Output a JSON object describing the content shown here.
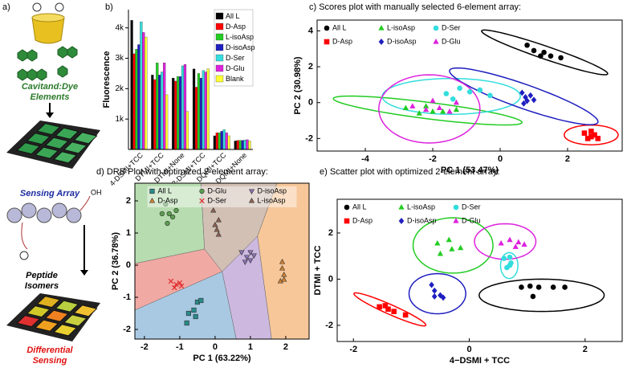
{
  "illustration": {
    "label": "a)",
    "elements": [
      "Cavitand:Dye",
      "Elements"
    ],
    "array": "Sensing Array",
    "hydroxyl": "OH",
    "peptides": [
      "Peptide",
      "Isomers"
    ],
    "sensing": [
      "Differential",
      "Sensing"
    ]
  },
  "chart_data": [
    {
      "type": "bar",
      "title": "b)",
      "ylabel": "Fluorescence",
      "categories": [
        "4-DSMI+TCC",
        "DTMI+TCC",
        "DTMI+None",
        "2-DSMI+TCC",
        "DQMI+TCC",
        "DQMI+None"
      ],
      "series": [
        {
          "name": "All L",
          "color": "#000000",
          "values": [
            4250,
            2450,
            2350,
            2650,
            450,
            280
          ]
        },
        {
          "name": "D-Asp",
          "color": "#ff0000",
          "values": [
            3150,
            2300,
            2250,
            2050,
            550,
            300
          ]
        },
        {
          "name": "L-isoAsp",
          "color": "#22cc22",
          "values": [
            3300,
            2850,
            2400,
            2500,
            550,
            300
          ]
        },
        {
          "name": "D-isoAsp",
          "color": "#1f1fbf",
          "values": [
            3450,
            2450,
            2400,
            2350,
            600,
            300
          ]
        },
        {
          "name": "D-Ser",
          "color": "#33dddd",
          "values": [
            4200,
            2550,
            2750,
            2600,
            650,
            310
          ]
        },
        {
          "name": "D-Glu",
          "color": "#dd22dd",
          "values": [
            3850,
            2850,
            2800,
            2550,
            550,
            320
          ]
        },
        {
          "name": "Blank",
          "color": "#ffff33",
          "values": [
            3700,
            1800,
            1250,
            2650,
            450,
            280
          ]
        }
      ],
      "ylim": [
        0,
        4600
      ],
      "yticks": [
        {
          "value": 1000,
          "label": "1k"
        },
        {
          "value": 2000,
          "label": "2k"
        },
        {
          "value": 3000,
          "label": "3k"
        },
        {
          "value": 4000,
          "label": "4k"
        }
      ],
      "legend": "upper right"
    },
    {
      "type": "scatter",
      "title": "c) Scores plot with manually selected 6-element array:",
      "xlabel": "PC 1 (53.47%)",
      "ylabel": "PC 2 (30.98%)",
      "xlim": [
        -5.43,
        3.62
      ],
      "ylim": [
        -2.7,
        4.6
      ],
      "xticks": [
        -4,
        -2,
        0,
        2
      ],
      "yticks": [
        -2,
        0,
        2,
        4
      ],
      "legend": "upper left",
      "series": [
        {
          "name": "All L",
          "color": "#000000",
          "marker": "circle",
          "x": [
            0.8,
            1.0,
            1.3,
            1.5,
            1.8,
            1.2
          ],
          "y": [
            3.2,
            2.9,
            2.8,
            2.6,
            2.5,
            2.6
          ],
          "ellipse": {
            "center": [
              1.32,
              2.8
            ],
            "u": [
              1.87,
              -1.2
            ],
            "v": [
              0.06,
              0.34
            ]
          }
        },
        {
          "name": "L-isoAsp",
          "color": "#22cc22",
          "marker": "triangle",
          "x": [
            -2.8,
            -2.4,
            -2.0,
            -1.7,
            -1.3,
            -2.2
          ],
          "y": [
            -0.3,
            -0.6,
            -0.5,
            -0.5,
            -0.4,
            -0.2
          ],
          "ellipse": {
            "center": [
              -2.15,
              -0.44
            ],
            "u": [
              2.8,
              -0.67
            ],
            "v": [
              0.05,
              0.45
            ]
          }
        },
        {
          "name": "D-Ser",
          "color": "#33dddd",
          "marker": "circle",
          "x": [
            -1.6,
            -1.2,
            -0.9,
            -0.6,
            -1.4,
            -0.3
          ],
          "y": [
            0.5,
            0.8,
            0.6,
            0.7,
            0.2,
            0.4
          ],
          "ellipse": {
            "center": [
              -1.45,
              0.35
            ],
            "u": [
              2.05,
              0
            ],
            "v": [
              0,
              1.0
            ]
          }
        },
        {
          "name": "D-Asp",
          "color": "#ff0000",
          "marker": "square",
          "x": [
            2.5,
            2.7,
            2.8,
            2.6,
            2.9,
            2.7
          ],
          "y": [
            -1.7,
            -1.6,
            -1.8,
            -2.0,
            -2.0,
            -1.9
          ],
          "ellipse": {
            "center": [
              2.7,
              -1.8
            ],
            "u": [
              0.8,
              0
            ],
            "v": [
              0,
              0.55
            ]
          }
        },
        {
          "name": "D-isoAsp",
          "color": "#1f1fbf",
          "marker": "diamond",
          "x": [
            0.65,
            0.75,
            0.8,
            0.9,
            1.0,
            0.7
          ],
          "y": [
            0.55,
            0.3,
            0.1,
            0.4,
            0.15,
            -0.05
          ],
          "ellipse": {
            "center": [
              0.7,
              0.35
            ],
            "u": [
              2.2,
              -1.45
            ],
            "v": [
              0.12,
              0.63
            ]
          }
        },
        {
          "name": "D-Glu",
          "color": "#dd22dd",
          "marker": "triangle",
          "x": [
            -2.6,
            -2.2,
            -1.8,
            -1.5,
            -1.3,
            -2.0
          ],
          "y": [
            -0.2,
            -0.4,
            -0.3,
            -0.5,
            0.0,
            0.1
          ],
          "ellipse": {
            "center": [
              -2.1,
              -0.35
            ],
            "u": [
              1.5,
              0
            ],
            "v": [
              0,
              1.9
            ]
          }
        }
      ]
    },
    {
      "type": "scatter",
      "title": "d) DRB Plot with optimized 2-element array:",
      "xlabel": "PC 1 (63.22%)",
      "ylabel": "PC 2 (36.78%)",
      "xlim": [
        -2.27,
        2.66
      ],
      "ylim": [
        -2.3,
        2.55
      ],
      "xticks": [
        -2,
        -1,
        0,
        1,
        2
      ],
      "yticks": [
        -2,
        -1,
        0,
        1,
        2
      ],
      "legend": "upper center",
      "marker_edge": "#333333",
      "regions": [
        {
          "color": "#b7dcb0",
          "polygon": [
            [
              -2.27,
              2.55
            ],
            [
              -0.4,
              2.55
            ],
            [
              -0.3,
              0.5
            ],
            [
              -2.27,
              0.05
            ]
          ]
        },
        {
          "color": "#f1a9a4",
          "polygon": [
            [
              -2.27,
              0.05
            ],
            [
              -0.3,
              0.5
            ],
            [
              0.2,
              -0.2
            ],
            [
              -2.27,
              -1.4
            ]
          ]
        },
        {
          "color": "#a9c9e3",
          "polygon": [
            [
              -2.27,
              -1.4
            ],
            [
              0.2,
              -0.2
            ],
            [
              0.6,
              -2.3
            ],
            [
              -2.27,
              -2.3
            ]
          ]
        },
        {
          "color": "#d2c0b5",
          "polygon": [
            [
              -0.4,
              2.55
            ],
            [
              1.75,
              2.55
            ],
            [
              1.2,
              0.9
            ],
            [
              0.2,
              -0.2
            ],
            [
              -0.3,
              0.5
            ]
          ]
        },
        {
          "color": "#cdb9e0",
          "polygon": [
            [
              0.2,
              -0.2
            ],
            [
              1.2,
              0.9
            ],
            [
              1.6,
              -2.3
            ],
            [
              0.6,
              -2.3
            ]
          ]
        },
        {
          "color": "#f7c79a",
          "polygon": [
            [
              1.75,
              2.55
            ],
            [
              2.66,
              2.55
            ],
            [
              2.66,
              -2.3
            ],
            [
              1.6,
              -2.3
            ],
            [
              1.2,
              0.9
            ]
          ]
        }
      ],
      "series": [
        {
          "name": "All L",
          "color": "#2a8a8a",
          "marker": "square",
          "x": [
            -0.8,
            -0.75,
            -0.6,
            -0.5,
            -0.55,
            -0.4
          ],
          "y": [
            -1.8,
            -1.5,
            -1.4,
            -1.15,
            -1.6,
            -1.1
          ]
        },
        {
          "name": "D-Glu",
          "color": "#5aa050",
          "marker": "circle",
          "x": [
            -1.5,
            -1.4,
            -1.3,
            -1.2,
            -1.1,
            -1.35
          ],
          "y": [
            1.6,
            1.9,
            1.6,
            1.5,
            1.7,
            1.3
          ]
        },
        {
          "name": "D-isoAsp",
          "color": "#8a70b0",
          "marker": "triangle-down",
          "x": [
            0.75,
            0.9,
            1.0,
            1.1,
            0.85,
            1.0
          ],
          "y": [
            0.4,
            0.25,
            0.4,
            0.3,
            0.1,
            0.15
          ]
        },
        {
          "name": "D-Asp",
          "color": "#d08030",
          "marker": "triangle",
          "x": [
            1.9,
            1.95,
            1.85,
            1.95,
            1.9
          ],
          "y": [
            -0.1,
            -0.3,
            -0.5,
            -0.45,
            0.1
          ]
        },
        {
          "name": "D-Ser",
          "color": "#e03030",
          "marker": "x",
          "x": [
            -1.25,
            -1.1,
            -1.0,
            -1.15,
            -0.95
          ],
          "y": [
            -0.5,
            -0.6,
            -0.55,
            -0.7,
            -0.65
          ]
        },
        {
          "name": "L-isoAsp",
          "color": "#8a6050",
          "marker": "triangle",
          "x": [
            -0.05,
            0.1,
            0.05,
            0.1,
            0.0
          ],
          "y": [
            1.7,
            1.4,
            1.1,
            0.95,
            1.25
          ]
        }
      ]
    },
    {
      "type": "scatter",
      "title": "e) Scatter plot with optimized 2-element array:",
      "xlabel": "4−DSMI + TCC",
      "ylabel": "DTMI + TCC",
      "xlim": [
        -2.28,
        2.64
      ],
      "ylim": [
        -2.7,
        3.46
      ],
      "xticks": [
        -2,
        0,
        2
      ],
      "yticks": [
        -2,
        0,
        2
      ],
      "legend": "upper left",
      "series": [
        {
          "name": "All L",
          "color": "#000000",
          "marker": "circle",
          "x": [
            0.9,
            1.05,
            1.2,
            1.45,
            1.65,
            1.1
          ],
          "y": [
            -0.35,
            -0.3,
            -0.35,
            -0.35,
            -0.35,
            -0.75
          ],
          "ellipse": {
            "center": [
              1.25,
              -0.7
            ],
            "u": [
              1.08,
              0
            ],
            "v": [
              0,
              0.7
            ]
          }
        },
        {
          "name": "L-isoAsp",
          "color": "#22cc22",
          "marker": "triangle",
          "x": [
            -0.55,
            -0.35,
            -0.3,
            -0.15,
            -0.5
          ],
          "y": [
            1.55,
            1.7,
            1.3,
            1.35,
            1.1
          ],
          "ellipse": {
            "center": [
              -0.28,
              1.46
            ],
            "u": [
              0.69,
              0
            ],
            "v": [
              0,
              1.2
            ]
          }
        },
        {
          "name": "D-Ser",
          "color": "#33dddd",
          "marker": "circle",
          "x": [
            0.6,
            0.7,
            0.72,
            0.65,
            0.7
          ],
          "y": [
            0.9,
            0.6,
            0.7,
            0.5,
            0.95
          ],
          "ellipse": {
            "center": [
              0.69,
              0.59
            ],
            "u": [
              0.15,
              0
            ],
            "v": [
              0,
              0.56
            ]
          }
        },
        {
          "name": "D-Asp",
          "color": "#ff0000",
          "marker": "square",
          "x": [
            -1.55,
            -1.4,
            -1.3,
            -1.1,
            -1.45
          ],
          "y": [
            -1.2,
            -1.3,
            -1.4,
            -1.55,
            -1.15
          ],
          "ellipse": {
            "center": [
              -1.37,
              -1.31
            ],
            "u": [
              0.62,
              -0.69
            ],
            "v": [
              0.035,
              0.19
            ]
          }
        },
        {
          "name": "D-isoAsp",
          "color": "#1f1fbf",
          "marker": "diamond",
          "x": [
            -0.65,
            -0.6,
            -0.5,
            -0.45,
            -0.6
          ],
          "y": [
            -0.25,
            -0.5,
            -0.7,
            -0.8,
            -0.75
          ],
          "ellipse": {
            "center": [
              -0.55,
              -0.63
            ],
            "u": [
              0.49,
              0
            ],
            "v": [
              0,
              0.87
            ]
          }
        },
        {
          "name": "D-Glu",
          "color": "#dd22dd",
          "marker": "triangle",
          "x": [
            0.55,
            0.7,
            0.85,
            0.8,
            0.95
          ],
          "y": [
            1.55,
            1.7,
            1.6,
            1.4,
            1.5
          ],
          "ellipse": {
            "center": [
              0.62,
              1.63
            ],
            "u": [
              0.53,
              0
            ],
            "v": [
              0,
              0.77
            ]
          }
        }
      ]
    }
  ]
}
